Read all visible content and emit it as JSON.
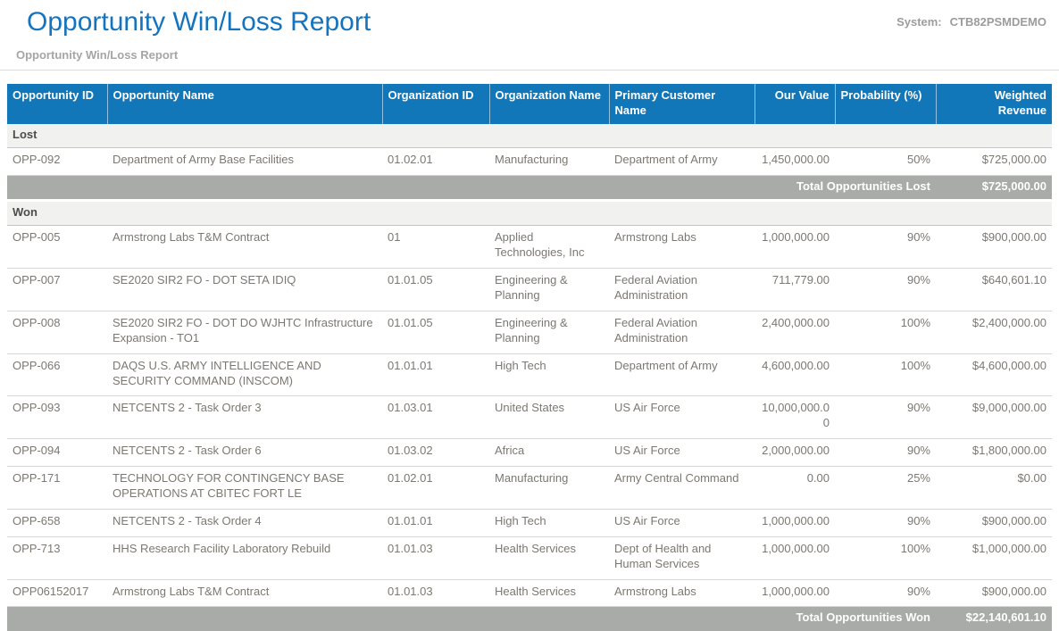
{
  "header": {
    "title": "Opportunity Win/Loss Report",
    "subtitle": "Opportunity Win/Loss Report",
    "system_label": "System:",
    "system_value": "CTB82PSMDEMO"
  },
  "colors": {
    "title_blue": "#1574bd",
    "table_header_blue": "#1277b8",
    "total_bar_gray": "#a8aba7",
    "section_bg": "#f1f1f0",
    "body_text_gray": "#7c7872"
  },
  "table": {
    "columns": [
      {
        "key": "opportunity-id",
        "label": "Opportunity ID"
      },
      {
        "key": "opportunity-name",
        "label": "Opportunity Name"
      },
      {
        "key": "organization-id",
        "label": "Organization ID"
      },
      {
        "key": "organization-name",
        "label": "Organization Name"
      },
      {
        "key": "primary-customer-name",
        "label": "Primary Customer Name"
      },
      {
        "key": "our-value",
        "label": "Our Value"
      },
      {
        "key": "probability",
        "label": "Probability (%)"
      },
      {
        "key": "weighted-revenue",
        "label": "Weighted Revenue"
      }
    ],
    "sections": [
      {
        "label": "Lost",
        "rows": [
          [
            "OPP-092",
            "Department of Army Base Facilities",
            "01.02.01",
            "Manufacturing",
            "Department of Army",
            "1,450,000.00",
            "50%",
            "$725,000.00"
          ]
        ],
        "total_label": "Total Opportunities Lost",
        "total_value": "$725,000.00"
      },
      {
        "label": "Won",
        "rows": [
          [
            "OPP-005",
            "Armstrong Labs T&M Contract",
            "01",
            "Applied Technologies, Inc",
            "Armstrong Labs",
            "1,000,000.00",
            "90%",
            "$900,000.00"
          ],
          [
            "OPP-007",
            "SE2020 SIR2 FO - DOT SETA IDIQ",
            "01.01.05",
            "Engineering & Planning",
            "Federal Aviation Administration",
            "711,779.00",
            "90%",
            "$640,601.10"
          ],
          [
            "OPP-008",
            "SE2020 SIR2 FO - DOT DO WJHTC Infrastructure Expansion - TO1",
            "01.01.05",
            "Engineering & Planning",
            "Federal Aviation Administration",
            "2,400,000.00",
            "100%",
            "$2,400,000.00"
          ],
          [
            "OPP-066",
            "DAQS U.S. ARMY INTELLIGENCE AND SECURITY COMMAND (INSCOM)",
            "01.01.01",
            "High Tech",
            "Department of Army",
            "4,600,000.00",
            "100%",
            "$4,600,000.00"
          ],
          [
            "OPP-093",
            "NETCENTS 2 - Task Order 3",
            "01.03.01",
            "United States",
            "US Air Force",
            "10,000,000.00",
            "90%",
            "$9,000,000.00"
          ],
          [
            "OPP-094",
            "NETCENTS 2 - Task Order 6",
            "01.03.02",
            "Africa",
            "US Air Force",
            "2,000,000.00",
            "90%",
            "$1,800,000.00"
          ],
          [
            "OPP-171",
            "TECHNOLOGY FOR CONTINGENCY BASE OPERATIONS AT CBITEC FORT LE",
            "01.02.01",
            "Manufacturing",
            "Army Central Command",
            "0.00",
            "25%",
            "$0.00"
          ],
          [
            "OPP-658",
            "NETCENTS 2 - Task Order 4",
            "01.01.01",
            "High Tech",
            "US Air Force",
            "1,000,000.00",
            "90%",
            "$900,000.00"
          ],
          [
            "OPP-713",
            "HHS Research Facility Laboratory Rebuild",
            "01.01.03",
            "Health Services",
            "Dept of Health and Human Services",
            "1,000,000.00",
            "100%",
            "$1,000,000.00"
          ],
          [
            "OPP06152017",
            "Armstrong Labs T&M Contract",
            "01.01.03",
            "Health Services",
            "Armstrong Labs",
            "1,000,000.00",
            "90%",
            "$900,000.00"
          ]
        ],
        "total_label": "Total Opportunities Won",
        "total_value": "$22,140,601.10"
      }
    ]
  }
}
